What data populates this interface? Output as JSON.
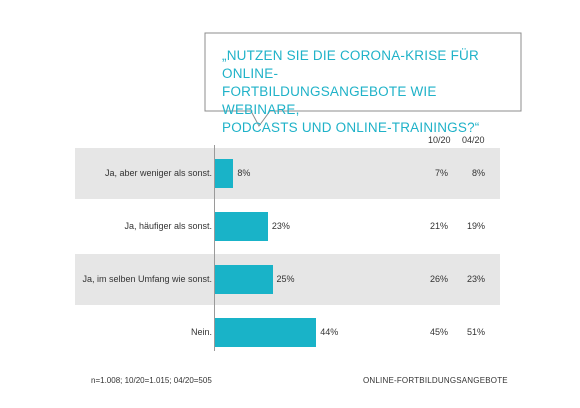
{
  "question": {
    "lines": [
      "„NUTZEN SIE DIE CORONA-KRISE FÜR ONLINE-",
      "FORTBILDUNGSANGEBOTE WIE WEBINARE,",
      "PODCASTS UND ONLINE-TRAININGS?“"
    ]
  },
  "columns": {
    "prev1": "10/20",
    "prev2": "04/20"
  },
  "footer": {
    "sample": "n=1.008;  10/20=1.015;  04/20=505",
    "topic": "ONLINE-FORTBILDUNGSANGEBOTE"
  },
  "colors": {
    "bar": "#19b3c8",
    "question_text": "#1fb2c8",
    "row_shade": "#e6e6e6"
  },
  "chart_data": {
    "type": "bar",
    "orientation": "horizontal",
    "title": "„NUTZEN SIE DIE CORONA-KRISE FÜR ONLINE-FORTBILDUNGSANGEBOTE WIE WEBINARE, PODCASTS UND ONLINE-TRAININGS?“",
    "categories": [
      "Ja, aber weniger als sonst.",
      "Ja, häufiger als sonst.",
      "Ja, im selben Umfang wie sonst.",
      "Nein."
    ],
    "values": [
      8,
      23,
      25,
      44
    ],
    "value_labels": [
      "8%",
      "23%",
      "25%",
      "44%"
    ],
    "comparison": [
      {
        "name": "10/20",
        "labels": [
          "7%",
          "21%",
          "26%",
          "45%"
        ]
      },
      {
        "name": "04/20",
        "labels": [
          "8%",
          "19%",
          "23%",
          "51%"
        ]
      }
    ],
    "xlim": [
      0,
      100
    ],
    "grid": false,
    "legend": "none"
  }
}
